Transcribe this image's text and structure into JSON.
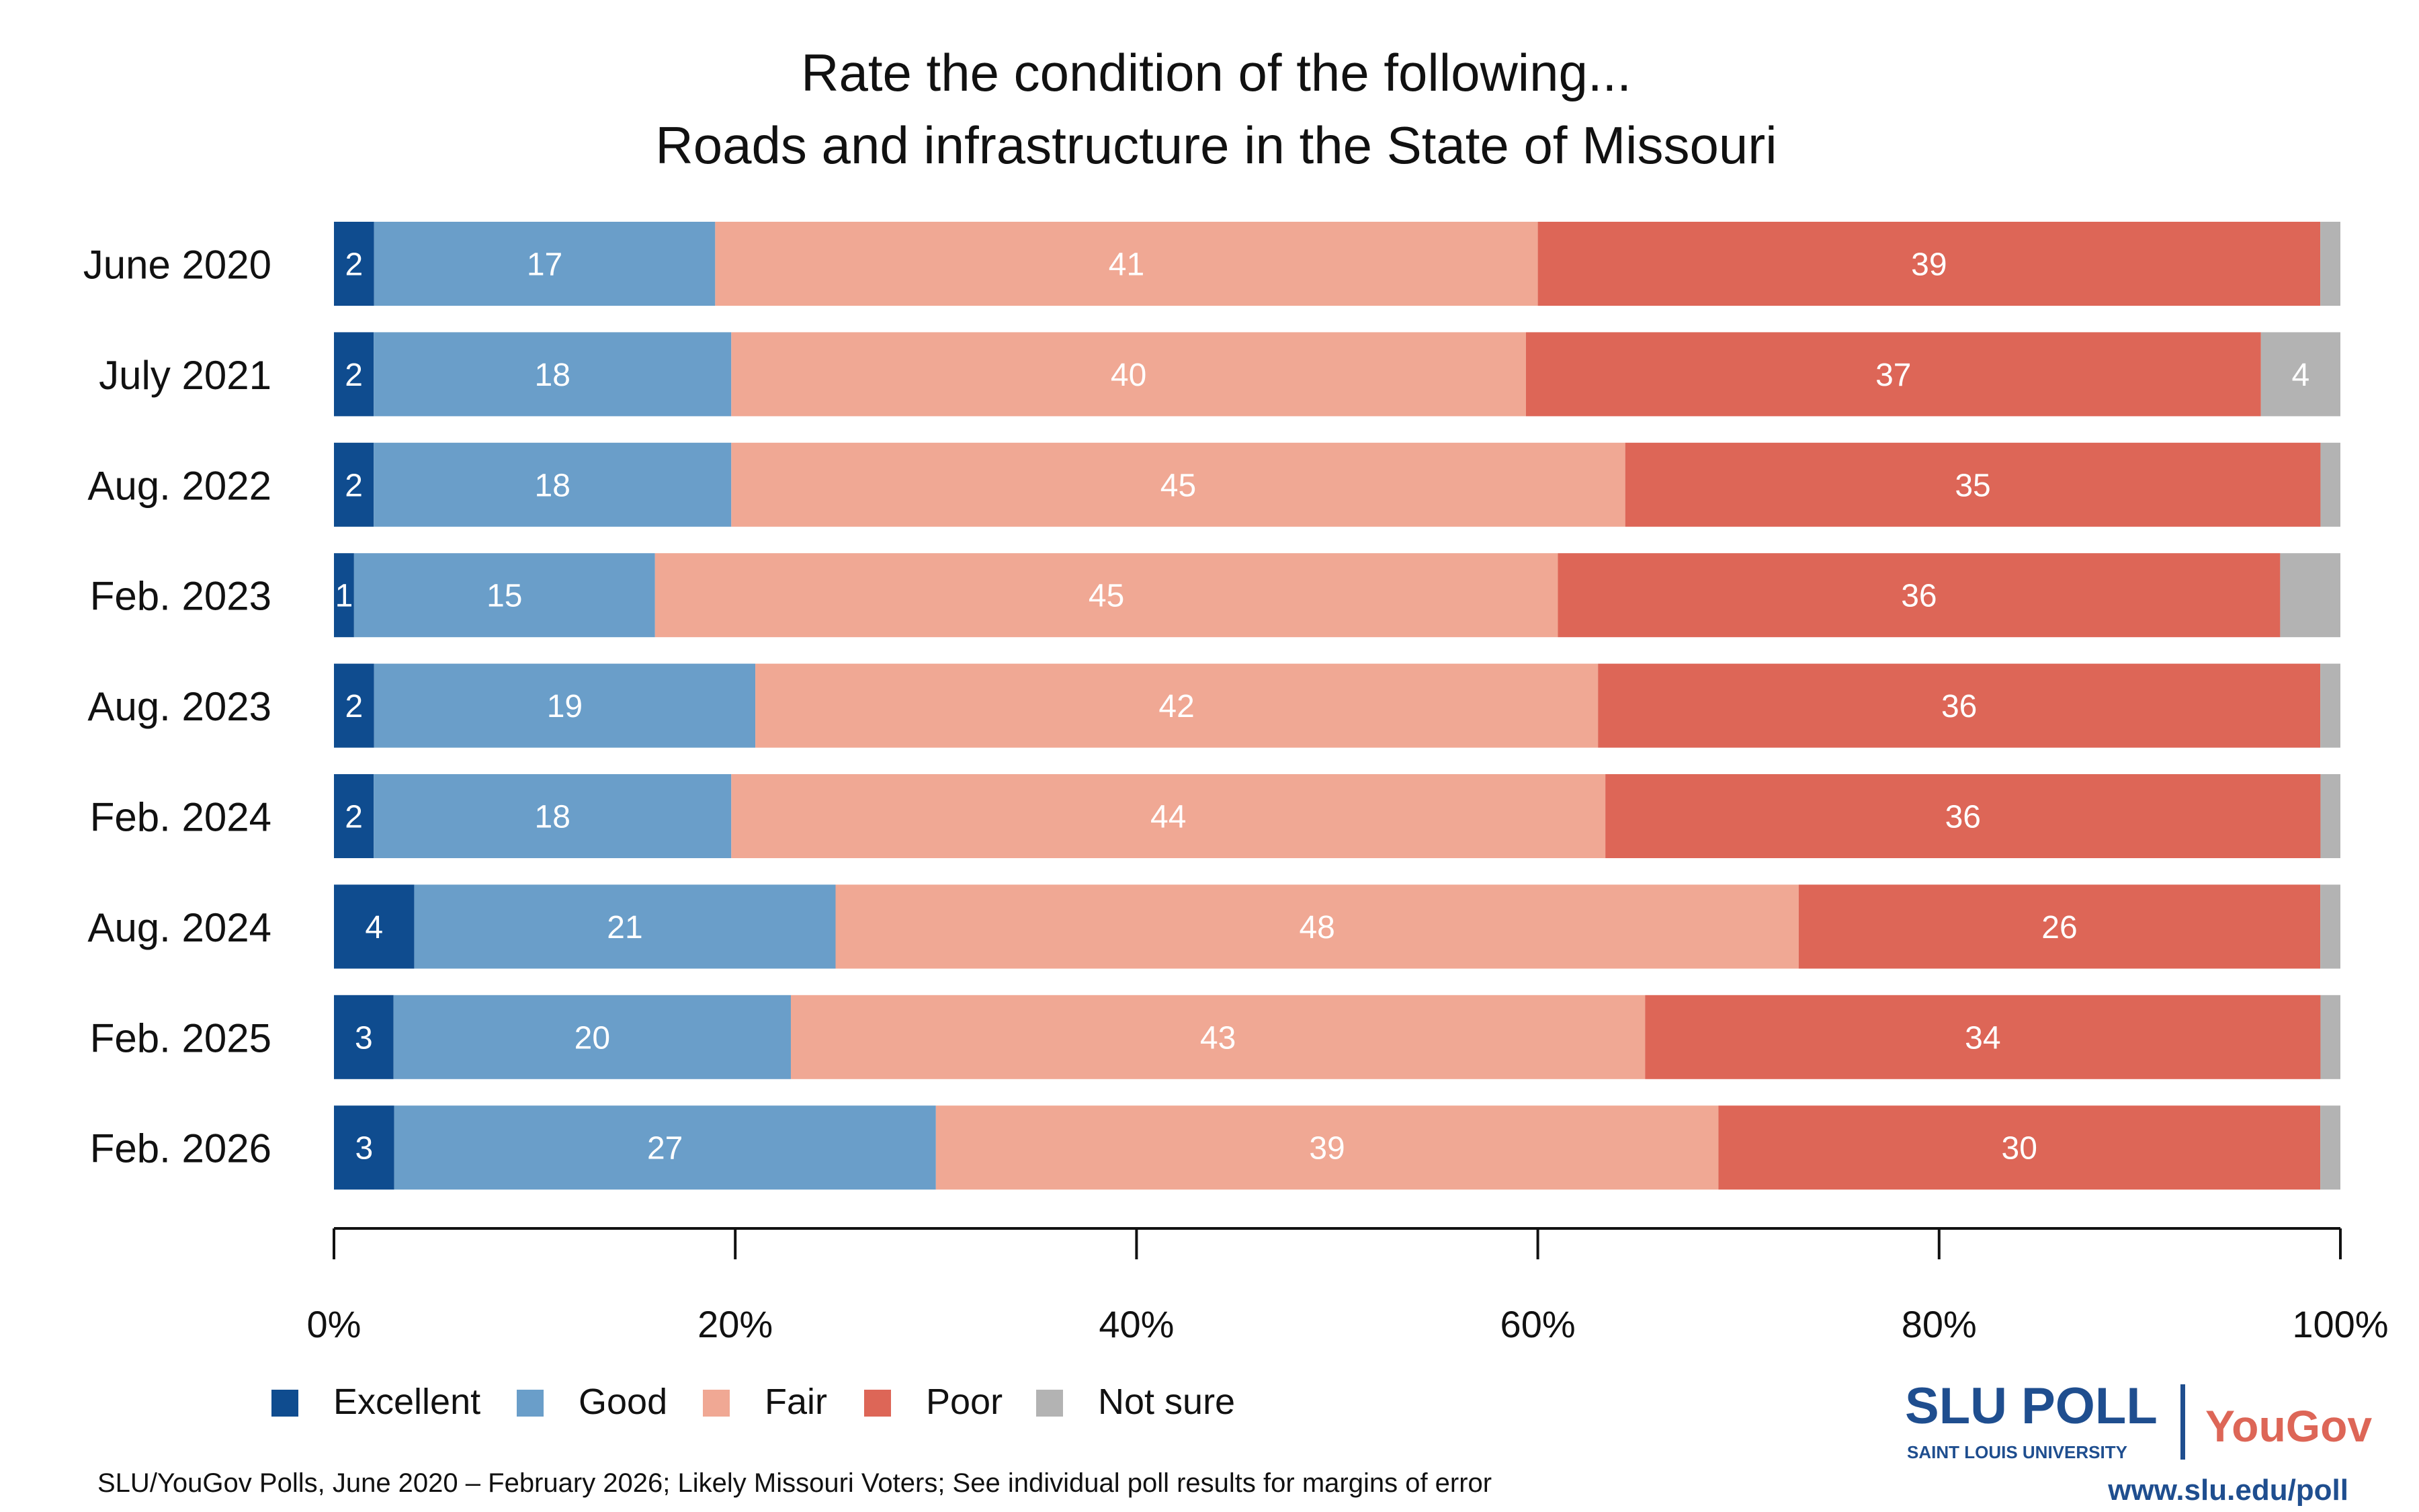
{
  "chart_data": {
    "type": "bar",
    "orientation": "horizontal",
    "stacked": true,
    "title": "Rate the condition of the following...",
    "subtitle": "Roads and infrastructure in the State of Missouri",
    "categories": [
      "June 2020",
      "July 2021",
      "Aug. 2022",
      "Feb. 2023",
      "Aug. 2023",
      "Feb. 2024",
      "Aug. 2024",
      "Feb. 2025",
      "Feb. 2026"
    ],
    "series": [
      {
        "name": "Excellent",
        "color": "#0f4c8f",
        "values": [
          2,
          2,
          2,
          1,
          2,
          2,
          4,
          3,
          3
        ]
      },
      {
        "name": "Good",
        "color": "#6a9ec9",
        "values": [
          17,
          18,
          18,
          15,
          19,
          18,
          21,
          20,
          27
        ]
      },
      {
        "name": "Fair",
        "color": "#f0a894",
        "values": [
          41,
          40,
          45,
          45,
          42,
          44,
          48,
          43,
          39
        ]
      },
      {
        "name": "Poor",
        "color": "#dd6657",
        "values": [
          39,
          37,
          35,
          36,
          36,
          36,
          26,
          34,
          30
        ]
      },
      {
        "name": "Not sure",
        "color": "#b3b3b3",
        "values": [
          1,
          4,
          1,
          3,
          1,
          1,
          1,
          1,
          1
        ]
      }
    ],
    "xlim": [
      0,
      100
    ],
    "xticks": [
      "0%",
      "20%",
      "40%",
      "60%",
      "80%",
      "100%"
    ],
    "legend_position": "bottom-left",
    "grid": false
  },
  "footer": {
    "source": "SLU/YouGov Polls, June 2020 – February 2026; Likely Missouri Voters; See individual poll results for margins of error"
  },
  "logo": {
    "slu": "SLU POLL",
    "slu_sub": "SAINT LOUIS UNIVERSITY",
    "yougov": "YouGov",
    "url": "www.slu.edu/poll"
  }
}
